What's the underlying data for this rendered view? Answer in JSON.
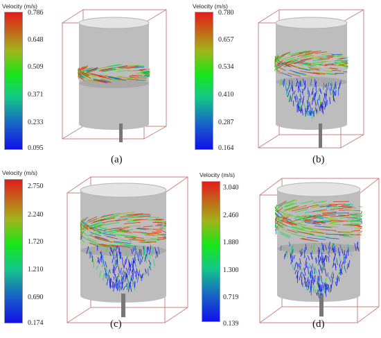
{
  "panels": [
    {
      "label": "(a)",
      "legend_title": "Velocity (m/s)",
      "ticks": [
        "0.786",
        "0.648",
        "0.509",
        "0.371",
        "0.233",
        "0.095"
      ]
    },
    {
      "label": "(b)",
      "legend_title": "Velocity (m/s)",
      "ticks": [
        "0.780",
        "0.657",
        "0.534",
        "0.410",
        "0.287",
        "0.164"
      ]
    },
    {
      "label": "(c)",
      "legend_title": "Velocity (m/s)",
      "ticks": [
        "2.750",
        "2.240",
        "1.720",
        "1.210",
        "0.690",
        "0.174"
      ]
    },
    {
      "label": "(d)",
      "legend_title": "Velocity (m/s)",
      "ticks": [
        "3.040",
        "2.460",
        "1.880",
        "1.300",
        "0.719",
        "0.139"
      ]
    }
  ],
  "colors": {
    "box_edge": "#c98080",
    "cylinder": "#b8b8b8",
    "streak_palette": [
      "#1a1ae6",
      "#1a60d0",
      "#14c89a",
      "#20e020",
      "#a2b41a",
      "#d23a1a"
    ]
  }
}
